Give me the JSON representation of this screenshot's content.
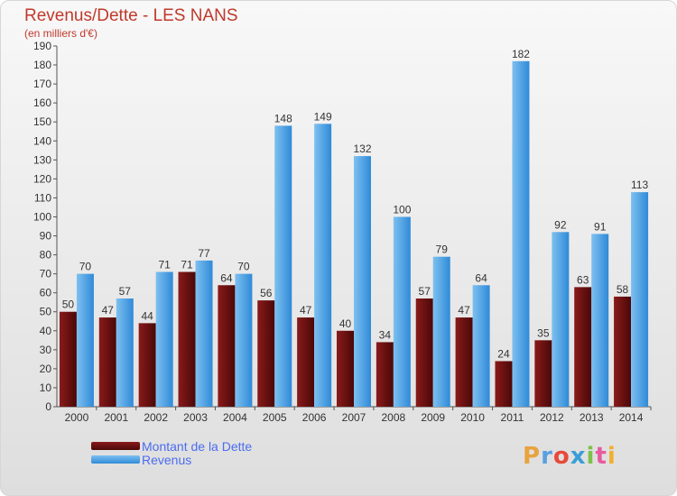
{
  "header": {
    "title": "Revenus/Dette - LES NANS",
    "subtitle": "(en milliers d'€)"
  },
  "legend": {
    "items": [
      "Montant de la Dette",
      "Revenus"
    ]
  },
  "logo": {
    "text": "Proxiti",
    "colors": [
      "#e8a33d",
      "#5aa0e0",
      "#e84a3a",
      "#3a9ed8",
      "#7cc24a",
      "#e85aa0",
      "#f0b030"
    ]
  },
  "colors": {
    "dette_top": "#8a1a1a",
    "dette_bottom": "#4a0808",
    "revenus_top": "#7ec0f0",
    "revenus_bottom": "#2f8ad8",
    "title": "#c0392b",
    "legend_text": "#4b6cf0"
  },
  "chart_data": {
    "type": "bar",
    "title": "Revenus/Dette - LES NANS",
    "ylabel": "",
    "xlabel": "",
    "ylim": [
      0,
      190
    ],
    "ytick_step": 10,
    "grid": false,
    "legend_position": "bottom-left",
    "categories": [
      "2000",
      "2001",
      "2002",
      "2003",
      "2004",
      "2005",
      "2006",
      "2007",
      "2008",
      "2009",
      "2010",
      "2011",
      "2012",
      "2013",
      "2014"
    ],
    "series": [
      {
        "name": "Montant de la Dette",
        "values": [
          50,
          47,
          44,
          71,
          64,
          56,
          47,
          40,
          34,
          57,
          47,
          24,
          35,
          63,
          58
        ]
      },
      {
        "name": "Revenus",
        "values": [
          70,
          57,
          71,
          77,
          70,
          148,
          149,
          132,
          100,
          79,
          64,
          182,
          92,
          91,
          113
        ]
      }
    ]
  }
}
